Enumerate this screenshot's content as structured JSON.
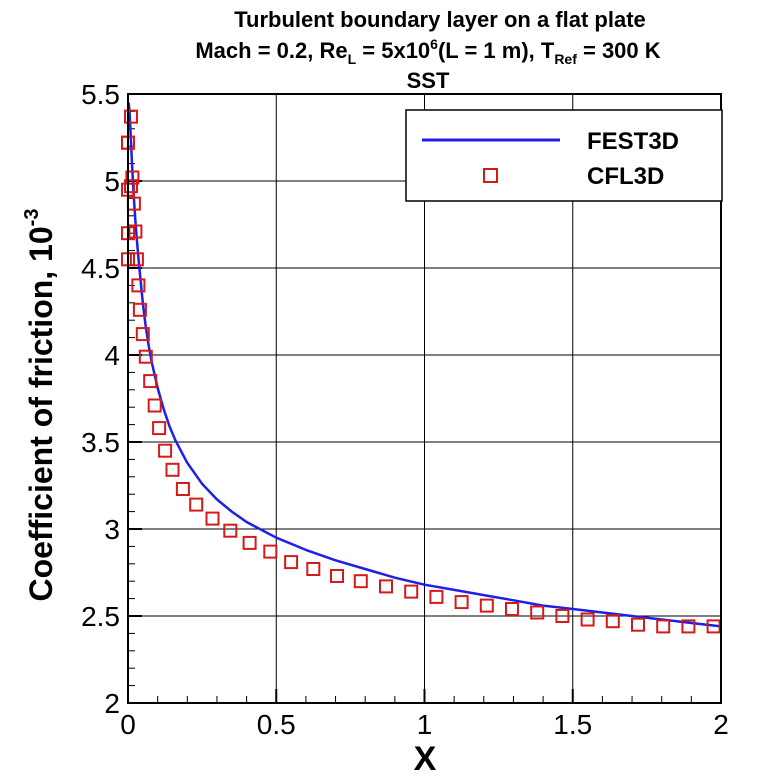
{
  "chart_data": {
    "type": "line",
    "title": {
      "line1": "Turbulent boundary layer on a flat plate",
      "line2": {
        "mach": "Mach = 0.2, Re",
        "re_sub": "L",
        "re_mid": " = 5x10",
        "re_sup": "6",
        "len": "(L = 1 m), T",
        "t_sub": "Ref",
        "t_end": " = 300 K"
      },
      "line3": "SST"
    },
    "xlabel": "X",
    "ylabel": {
      "text": "Coefficient of friction, 10",
      "sup": "-3"
    },
    "xlim": [
      0,
      2
    ],
    "ylim": [
      2,
      5.5
    ],
    "x_ticks": [
      {
        "value": 0,
        "label": "0"
      },
      {
        "value": 0.5,
        "label": "0.5"
      },
      {
        "value": 1,
        "label": "1"
      },
      {
        "value": 1.5,
        "label": "1.5"
      },
      {
        "value": 2,
        "label": "2"
      }
    ],
    "y_ticks": [
      {
        "value": 2,
        "label": "2"
      },
      {
        "value": 2.5,
        "label": "2.5"
      },
      {
        "value": 3,
        "label": "3"
      },
      {
        "value": 3.5,
        "label": "3.5"
      },
      {
        "value": 4,
        "label": "4"
      },
      {
        "value": 4.5,
        "label": "4.5"
      },
      {
        "value": 5,
        "label": "5"
      },
      {
        "value": 5.5,
        "label": "5.5"
      }
    ],
    "x_minor_step": 0.1,
    "y_minor_step": 0.1,
    "grid": true,
    "legend_position": "top-right",
    "series": [
      {
        "name": "FEST3D",
        "kind": "line",
        "color": "#1f1fe6",
        "x": [
          0.0025,
          0.005,
          0.008,
          0.012,
          0.016,
          0.02,
          0.025,
          0.03,
          0.035,
          0.04,
          0.05,
          0.06,
          0.07,
          0.08,
          0.1,
          0.12,
          0.14,
          0.16,
          0.2,
          0.25,
          0.3,
          0.35,
          0.4,
          0.5,
          0.6,
          0.7,
          0.8,
          0.9,
          1.0,
          1.1,
          1.2,
          1.3,
          1.4,
          1.5,
          1.6,
          1.7,
          1.8,
          1.9,
          2.0
        ],
        "y": [
          5.45,
          5.4,
          5.3,
          5.15,
          5.02,
          4.9,
          4.77,
          4.66,
          4.56,
          4.47,
          4.3,
          4.16,
          4.05,
          3.96,
          3.81,
          3.69,
          3.59,
          3.51,
          3.38,
          3.26,
          3.17,
          3.1,
          3.04,
          2.95,
          2.88,
          2.82,
          2.77,
          2.72,
          2.68,
          2.65,
          2.62,
          2.59,
          2.56,
          2.54,
          2.52,
          2.5,
          2.48,
          2.46,
          2.44
        ]
      },
      {
        "name": "CFL3D",
        "kind": "markers",
        "color": "#d41a1a",
        "x": [
          0.0,
          0.0,
          0.0,
          0.0,
          0.0,
          0.01,
          0.01,
          0.015,
          0.02,
          0.025,
          0.03,
          0.035,
          0.04,
          0.05,
          0.06,
          0.075,
          0.09,
          0.105,
          0.125,
          0.15,
          0.185,
          0.23,
          0.285,
          0.345,
          0.41,
          0.48,
          0.55,
          0.625,
          0.705,
          0.785,
          0.87,
          0.955,
          1.04,
          1.125,
          1.21,
          1.295,
          1.38,
          1.465,
          1.55,
          1.635,
          1.72,
          1.805,
          1.89,
          1.975
        ],
        "y": [
          5.22,
          4.95,
          4.7,
          4.55,
          5.22,
          5.37,
          4.97,
          5.02,
          4.87,
          4.71,
          4.55,
          4.4,
          4.26,
          4.12,
          3.99,
          3.85,
          3.71,
          3.58,
          3.45,
          3.34,
          3.23,
          3.14,
          3.06,
          2.99,
          2.92,
          2.87,
          2.81,
          2.77,
          2.73,
          2.7,
          2.67,
          2.64,
          2.61,
          2.58,
          2.56,
          2.54,
          2.52,
          2.5,
          2.48,
          2.47,
          2.45,
          2.44,
          2.44,
          2.44
        ]
      }
    ]
  }
}
